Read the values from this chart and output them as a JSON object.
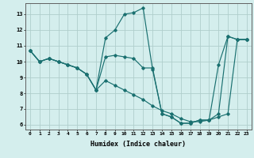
{
  "xlabel": "Humidex (Indice chaleur)",
  "bg_color": "#d4eeed",
  "grid_color": "#b0cecc",
  "line_color": "#1a7070",
  "xlim": [
    -0.5,
    23.5
  ],
  "ylim": [
    5.7,
    13.7
  ],
  "yticks": [
    6,
    7,
    8,
    9,
    10,
    11,
    12,
    13
  ],
  "xticks": [
    0,
    1,
    2,
    3,
    4,
    5,
    6,
    7,
    8,
    9,
    10,
    11,
    12,
    13,
    14,
    15,
    16,
    17,
    18,
    19,
    20,
    21,
    22,
    23
  ],
  "lines": [
    {
      "x": [
        0,
        1,
        2,
        3,
        4,
        5,
        6,
        7,
        8,
        9,
        10,
        11,
        12,
        13,
        14,
        15,
        16,
        17,
        18,
        19,
        20,
        21,
        22,
        23
      ],
      "y": [
        10.7,
        10.0,
        10.2,
        10.0,
        9.8,
        9.6,
        9.2,
        8.2,
        11.5,
        12.0,
        13.0,
        13.1,
        13.4,
        9.5,
        6.7,
        6.5,
        6.1,
        6.1,
        6.3,
        6.3,
        6.7,
        11.6,
        11.4,
        11.4
      ]
    },
    {
      "x": [
        0,
        1,
        2,
        3,
        4,
        5,
        6,
        7,
        8,
        9,
        10,
        11,
        12,
        13,
        14,
        15,
        16,
        17,
        18,
        19,
        20,
        21,
        22,
        23
      ],
      "y": [
        10.7,
        10.0,
        10.2,
        10.0,
        9.8,
        9.6,
        9.2,
        8.2,
        10.3,
        10.4,
        10.3,
        10.2,
        9.6,
        9.6,
        6.7,
        6.5,
        6.1,
        6.1,
        6.3,
        6.3,
        9.8,
        11.6,
        11.4,
        11.4
      ]
    },
    {
      "x": [
        0,
        1,
        2,
        3,
        4,
        5,
        6,
        7,
        8,
        9,
        10,
        11,
        12,
        13,
        14,
        15,
        16,
        17,
        18,
        19,
        20,
        21,
        22,
        23
      ],
      "y": [
        10.7,
        10.0,
        10.2,
        10.0,
        9.8,
        9.6,
        9.2,
        8.2,
        8.8,
        8.5,
        8.2,
        7.9,
        7.6,
        7.2,
        6.9,
        6.7,
        6.4,
        6.2,
        6.2,
        6.3,
        6.5,
        6.7,
        11.4,
        11.4
      ]
    }
  ]
}
